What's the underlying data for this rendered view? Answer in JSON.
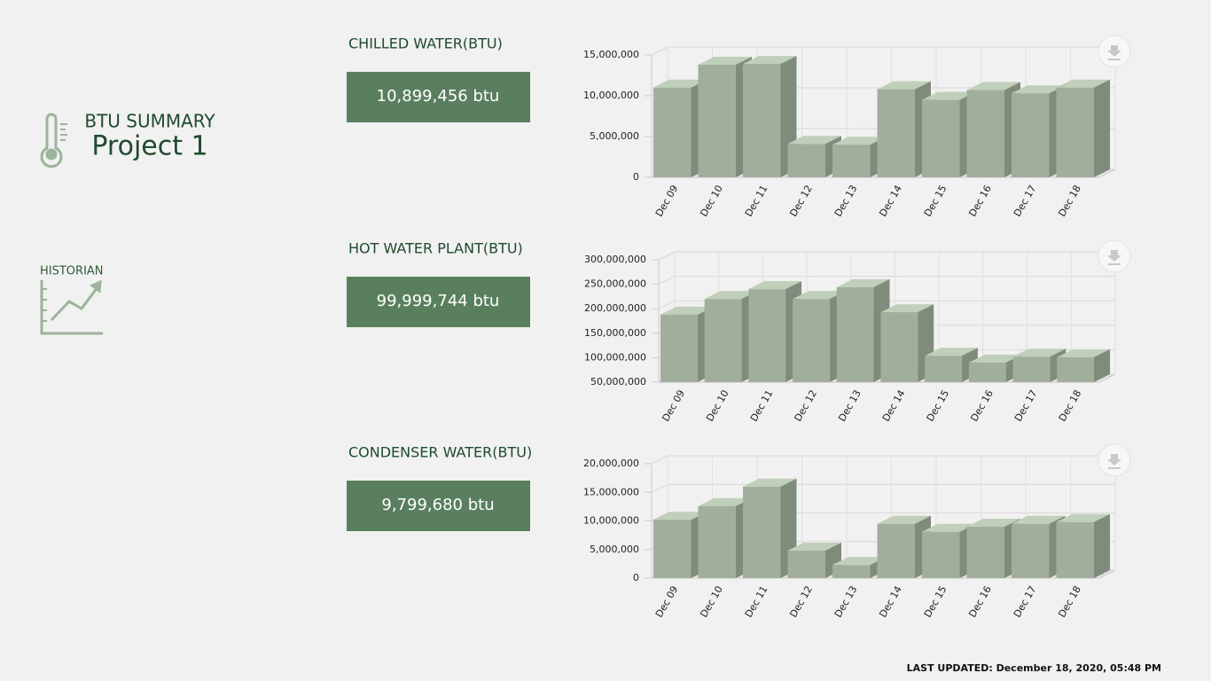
{
  "header": {
    "title": "BTU SUMMARY",
    "project": "Project 1"
  },
  "nav": {
    "historian": "HISTORIAN"
  },
  "panels": [
    {
      "title": "CHILLED WATER(BTU)",
      "total": "10,899,456 btu"
    },
    {
      "title": "HOT WATER PLANT(BTU)",
      "total": "99,999,744 btu"
    },
    {
      "title": "CONDENSER WATER(BTU)",
      "total": "9,799,680 btu"
    }
  ],
  "chart_data": [
    {
      "type": "bar",
      "color": "#a2ae9c",
      "grid": true,
      "categories": [
        "Dec 09",
        "Dec 10",
        "Dec 11",
        "Dec 12",
        "Dec 13",
        "Dec 14",
        "Dec 15",
        "Dec 16",
        "Dec 17",
        "Dec 18"
      ],
      "values": [
        11000000,
        13800000,
        13900000,
        4100000,
        4000000,
        10800000,
        9500000,
        10700000,
        10300000,
        11000000
      ],
      "ylim": [
        0,
        15000000
      ],
      "yticks": [
        0,
        {
          "value": 5000000,
          "label": "5,000,000"
        },
        {
          "value": 10000000,
          "label": "10,000,000"
        },
        {
          "value": 15000000,
          "label": "15,000,000"
        }
      ]
    },
    {
      "type": "bar",
      "color": "#a2ae9c",
      "grid": true,
      "categories": [
        "Dec 09",
        "Dec 10",
        "Dec 11",
        "Dec 12",
        "Dec 13",
        "Dec 14",
        "Dec 15",
        "Dec 16",
        "Dec 17",
        "Dec 18"
      ],
      "values": [
        188000000,
        220000000,
        240000000,
        220000000,
        244000000,
        193000000,
        104000000,
        90000000,
        102000000,
        101000000
      ],
      "ylim": [
        50000000,
        300000000
      ],
      "yticks": [
        {
          "value": 50000000,
          "label": "50,000,000"
        },
        {
          "value": 100000000,
          "label": "100,000,000"
        },
        {
          "value": 150000000,
          "label": "150,000,000"
        },
        {
          "value": 200000000,
          "label": "200,000,000"
        },
        {
          "value": 250000000,
          "label": "250,000,000"
        },
        {
          "value": 300000000,
          "label": "300,000,000"
        }
      ]
    },
    {
      "type": "bar",
      "color": "#a2ae9c",
      "grid": true,
      "categories": [
        "Dec 09",
        "Dec 10",
        "Dec 11",
        "Dec 12",
        "Dec 13",
        "Dec 14",
        "Dec 15",
        "Dec 16",
        "Dec 17",
        "Dec 18"
      ],
      "values": [
        10200000,
        12600000,
        16000000,
        4800000,
        2300000,
        9500000,
        8100000,
        9000000,
        9500000,
        9800000
      ],
      "ylim": [
        0,
        20000000
      ],
      "yticks": [
        0,
        {
          "value": 5000000,
          "label": "5,000,000"
        },
        {
          "value": 10000000,
          "label": "10,000,000"
        },
        {
          "value": 15000000,
          "label": "15,000,000"
        },
        {
          "value": 20000000,
          "label": "20,000,000"
        }
      ]
    }
  ],
  "footer": {
    "last_updated": "LAST UPDATED: December 18, 2020, 05:48 PM"
  }
}
